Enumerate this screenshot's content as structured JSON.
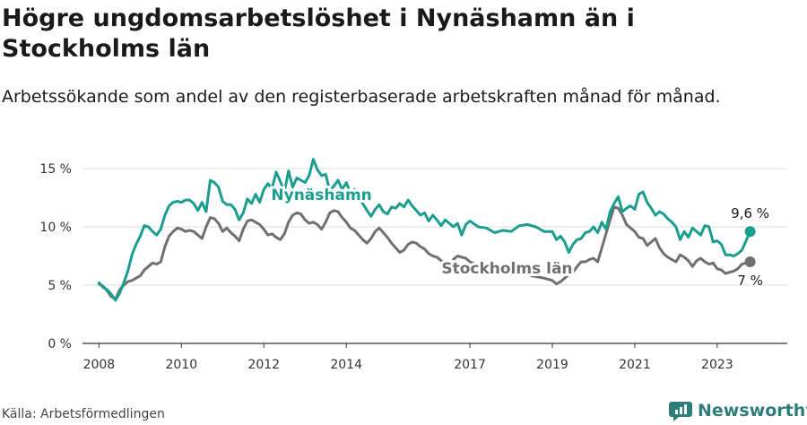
{
  "title": "Högre ungdomsarbetslöshet i Nynäshamn än i Stockholms län",
  "subtitle": "Arbetssökande som andel av den registerbaserade arbetskraften månad för månad.",
  "source": "Källa: Arbetsförmedlingen",
  "brand": {
    "name": "Newsworthy",
    "icon": "newsworthy-logo-icon"
  },
  "colors": {
    "nynashamn": "#1a9e8f",
    "stockholm": "#707070",
    "grid": "#dddddd",
    "axis": "#333333"
  },
  "chart_data": {
    "type": "line",
    "title": "Högre ungdomsarbetslöshet i Nynäshamn än i Stockholms län",
    "xlabel": "",
    "ylabel": "",
    "xlim": [
      2007.6,
      2024.7
    ],
    "ylim": [
      0,
      15
    ],
    "grid": true,
    "yticks": [
      {
        "value": 0,
        "label": "0 %"
      },
      {
        "value": 5,
        "label": "5 %"
      },
      {
        "value": 10,
        "label": "10 %"
      },
      {
        "value": 15,
        "label": "15 %"
      }
    ],
    "xticks": [
      {
        "value": 2008,
        "label": "2008"
      },
      {
        "value": 2010,
        "label": "2010"
      },
      {
        "value": 2012,
        "label": "2012"
      },
      {
        "value": 2014,
        "label": "2014"
      },
      {
        "value": 2017,
        "label": "2017"
      },
      {
        "value": 2019,
        "label": "2019"
      },
      {
        "value": 2021,
        "label": "2021"
      },
      {
        "value": 2023,
        "label": "2023"
      }
    ],
    "series": [
      {
        "name": "Nynäshamn",
        "end_label": "9,6 %",
        "points": [
          [
            2008.0,
            5.2
          ],
          [
            2008.1,
            4.8
          ],
          [
            2008.2,
            4.6
          ],
          [
            2008.3,
            4.2
          ],
          [
            2008.4,
            3.7
          ],
          [
            2008.5,
            4.3
          ],
          [
            2008.6,
            5.2
          ],
          [
            2008.7,
            6.2
          ],
          [
            2008.8,
            7.6
          ],
          [
            2008.9,
            8.5
          ],
          [
            2009.0,
            9.2
          ],
          [
            2009.1,
            10.1
          ],
          [
            2009.2,
            10.0
          ],
          [
            2009.3,
            9.6
          ],
          [
            2009.4,
            9.3
          ],
          [
            2009.5,
            9.8
          ],
          [
            2009.6,
            11.0
          ],
          [
            2009.7,
            11.8
          ],
          [
            2009.8,
            12.1
          ],
          [
            2009.9,
            12.2
          ],
          [
            2010.0,
            12.1
          ],
          [
            2010.1,
            12.3
          ],
          [
            2010.2,
            12.3
          ],
          [
            2010.3,
            12.0
          ],
          [
            2010.4,
            11.4
          ],
          [
            2010.5,
            12.1
          ],
          [
            2010.6,
            11.3
          ],
          [
            2010.7,
            14.0
          ],
          [
            2010.8,
            13.8
          ],
          [
            2010.9,
            13.4
          ],
          [
            2011.0,
            12.2
          ],
          [
            2011.1,
            11.9
          ],
          [
            2011.2,
            11.9
          ],
          [
            2011.3,
            11.5
          ],
          [
            2011.4,
            10.6
          ],
          [
            2011.5,
            11.2
          ],
          [
            2011.6,
            12.4
          ],
          [
            2011.7,
            12.0
          ],
          [
            2011.8,
            12.8
          ],
          [
            2011.9,
            12.1
          ],
          [
            2012.0,
            13.2
          ],
          [
            2012.1,
            13.7
          ],
          [
            2012.2,
            13.3
          ],
          [
            2012.3,
            14.7
          ],
          [
            2012.4,
            13.9
          ],
          [
            2012.5,
            13.0
          ],
          [
            2012.6,
            14.8
          ],
          [
            2012.7,
            13.4
          ],
          [
            2012.8,
            14.2
          ],
          [
            2012.9,
            14.0
          ],
          [
            2013.0,
            13.8
          ],
          [
            2013.1,
            14.4
          ],
          [
            2013.2,
            15.8
          ],
          [
            2013.3,
            14.9
          ],
          [
            2013.4,
            14.4
          ],
          [
            2013.5,
            14.5
          ],
          [
            2013.6,
            13.1
          ],
          [
            2013.7,
            13.5
          ],
          [
            2013.8,
            14.0
          ],
          [
            2013.9,
            13.2
          ],
          [
            2014.0,
            13.8
          ],
          [
            2014.1,
            12.9
          ],
          [
            2014.2,
            13.2
          ],
          [
            2014.3,
            12.4
          ],
          [
            2014.4,
            12.0
          ],
          [
            2014.5,
            11.4
          ],
          [
            2014.6,
            10.9
          ],
          [
            2014.7,
            11.5
          ],
          [
            2014.8,
            11.9
          ],
          [
            2014.9,
            11.3
          ],
          [
            2015.0,
            11.1
          ],
          [
            2015.1,
            11.7
          ],
          [
            2015.2,
            11.6
          ],
          [
            2015.3,
            12.0
          ],
          [
            2015.4,
            11.7
          ],
          [
            2015.5,
            12.3
          ],
          [
            2015.6,
            11.8
          ],
          [
            2015.7,
            11.4
          ],
          [
            2015.8,
            11.0
          ],
          [
            2015.9,
            11.2
          ],
          [
            2016.0,
            10.5
          ],
          [
            2016.1,
            11.0
          ],
          [
            2016.2,
            10.6
          ],
          [
            2016.3,
            10.1
          ],
          [
            2016.4,
            10.6
          ],
          [
            2016.5,
            10.3
          ],
          [
            2016.6,
            10.0
          ],
          [
            2016.7,
            10.3
          ],
          [
            2016.8,
            9.3
          ],
          [
            2016.9,
            10.2
          ],
          [
            2017.0,
            10.5
          ],
          [
            2017.2,
            10.0
          ],
          [
            2017.4,
            9.9
          ],
          [
            2017.6,
            9.5
          ],
          [
            2017.8,
            9.7
          ],
          [
            2018.0,
            9.6
          ],
          [
            2018.2,
            10.1
          ],
          [
            2018.4,
            10.2
          ],
          [
            2018.6,
            10.0
          ],
          [
            2018.8,
            9.6
          ],
          [
            2019.0,
            9.6
          ],
          [
            2019.1,
            8.9
          ],
          [
            2019.2,
            9.2
          ],
          [
            2019.3,
            8.7
          ],
          [
            2019.4,
            7.8
          ],
          [
            2019.5,
            8.5
          ],
          [
            2019.6,
            8.9
          ],
          [
            2019.7,
            9.0
          ],
          [
            2019.8,
            9.5
          ],
          [
            2019.9,
            9.6
          ],
          [
            2020.0,
            10.0
          ],
          [
            2020.1,
            9.5
          ],
          [
            2020.2,
            10.4
          ],
          [
            2020.3,
            9.8
          ],
          [
            2020.4,
            11.3
          ],
          [
            2020.5,
            12.0
          ],
          [
            2020.6,
            12.6
          ],
          [
            2020.7,
            11.3
          ],
          [
            2020.8,
            11.6
          ],
          [
            2020.9,
            11.8
          ],
          [
            2021.0,
            11.5
          ],
          [
            2021.1,
            12.8
          ],
          [
            2021.2,
            13.0
          ],
          [
            2021.3,
            12.1
          ],
          [
            2021.4,
            11.6
          ],
          [
            2021.5,
            11.0
          ],
          [
            2021.6,
            11.3
          ],
          [
            2021.7,
            11.1
          ],
          [
            2021.8,
            10.7
          ],
          [
            2021.9,
            10.4
          ],
          [
            2022.0,
            10.0
          ],
          [
            2022.1,
            8.9
          ],
          [
            2022.2,
            9.6
          ],
          [
            2022.3,
            9.1
          ],
          [
            2022.4,
            9.9
          ],
          [
            2022.5,
            9.6
          ],
          [
            2022.6,
            9.3
          ],
          [
            2022.7,
            10.1
          ],
          [
            2022.8,
            10.0
          ],
          [
            2022.9,
            8.7
          ],
          [
            2023.0,
            8.8
          ],
          [
            2023.1,
            8.5
          ],
          [
            2023.2,
            7.6
          ],
          [
            2023.3,
            7.6
          ],
          [
            2023.4,
            7.5
          ],
          [
            2023.5,
            7.7
          ],
          [
            2023.6,
            8.0
          ],
          [
            2023.7,
            8.8
          ],
          [
            2023.8,
            9.6
          ]
        ]
      },
      {
        "name": "Stockholms län",
        "end_label": "7 %",
        "points": [
          [
            2008.0,
            5.1
          ],
          [
            2008.1,
            4.9
          ],
          [
            2008.2,
            4.5
          ],
          [
            2008.3,
            4.0
          ],
          [
            2008.4,
            3.8
          ],
          [
            2008.5,
            4.6
          ],
          [
            2008.6,
            5.0
          ],
          [
            2008.7,
            5.3
          ],
          [
            2008.8,
            5.4
          ],
          [
            2008.9,
            5.6
          ],
          [
            2009.0,
            5.8
          ],
          [
            2009.1,
            6.3
          ],
          [
            2009.2,
            6.6
          ],
          [
            2009.3,
            6.9
          ],
          [
            2009.4,
            6.8
          ],
          [
            2009.5,
            7.0
          ],
          [
            2009.6,
            8.3
          ],
          [
            2009.7,
            9.2
          ],
          [
            2009.8,
            9.6
          ],
          [
            2009.9,
            9.9
          ],
          [
            2010.0,
            9.8
          ],
          [
            2010.1,
            9.6
          ],
          [
            2010.2,
            9.7
          ],
          [
            2010.3,
            9.6
          ],
          [
            2010.4,
            9.3
          ],
          [
            2010.5,
            9.0
          ],
          [
            2010.6,
            10.0
          ],
          [
            2010.7,
            10.8
          ],
          [
            2010.8,
            10.7
          ],
          [
            2010.9,
            10.3
          ],
          [
            2011.0,
            9.6
          ],
          [
            2011.1,
            9.9
          ],
          [
            2011.2,
            9.5
          ],
          [
            2011.3,
            9.2
          ],
          [
            2011.4,
            8.8
          ],
          [
            2011.5,
            9.8
          ],
          [
            2011.6,
            10.5
          ],
          [
            2011.7,
            10.6
          ],
          [
            2011.8,
            10.4
          ],
          [
            2011.9,
            10.2
          ],
          [
            2012.0,
            9.8
          ],
          [
            2012.1,
            9.3
          ],
          [
            2012.2,
            9.4
          ],
          [
            2012.3,
            9.1
          ],
          [
            2012.4,
            8.9
          ],
          [
            2012.5,
            9.4
          ],
          [
            2012.6,
            10.4
          ],
          [
            2012.7,
            11.0
          ],
          [
            2012.8,
            11.2
          ],
          [
            2012.9,
            11.1
          ],
          [
            2013.0,
            10.6
          ],
          [
            2013.1,
            10.3
          ],
          [
            2013.2,
            10.4
          ],
          [
            2013.3,
            10.2
          ],
          [
            2013.4,
            9.8
          ],
          [
            2013.5,
            10.4
          ],
          [
            2013.6,
            11.2
          ],
          [
            2013.7,
            11.4
          ],
          [
            2013.8,
            11.3
          ],
          [
            2013.9,
            10.8
          ],
          [
            2014.0,
            10.4
          ],
          [
            2014.1,
            9.9
          ],
          [
            2014.2,
            9.7
          ],
          [
            2014.3,
            9.3
          ],
          [
            2014.4,
            8.9
          ],
          [
            2014.5,
            8.6
          ],
          [
            2014.6,
            9.0
          ],
          [
            2014.7,
            9.6
          ],
          [
            2014.8,
            9.9
          ],
          [
            2014.9,
            9.5
          ],
          [
            2015.0,
            9.1
          ],
          [
            2015.1,
            8.6
          ],
          [
            2015.2,
            8.2
          ],
          [
            2015.3,
            7.8
          ],
          [
            2015.4,
            8.0
          ],
          [
            2015.5,
            8.5
          ],
          [
            2015.6,
            8.7
          ],
          [
            2015.7,
            8.6
          ],
          [
            2015.8,
            8.3
          ],
          [
            2015.9,
            8.1
          ],
          [
            2016.0,
            7.7
          ],
          [
            2016.1,
            7.5
          ],
          [
            2016.2,
            7.4
          ],
          [
            2016.3,
            7.1
          ],
          [
            2016.4,
            6.9
          ],
          [
            2016.5,
            6.6
          ],
          [
            2016.6,
            7.2
          ],
          [
            2016.7,
            7.5
          ],
          [
            2016.8,
            7.4
          ],
          [
            2016.9,
            7.3
          ],
          [
            2017.0,
            7.0
          ],
          [
            2017.3,
            6.6
          ],
          [
            2017.6,
            6.3
          ],
          [
            2017.9,
            6.0
          ],
          [
            2018.2,
            6.2
          ],
          [
            2018.5,
            5.8
          ],
          [
            2018.8,
            5.6
          ],
          [
            2019.0,
            5.4
          ],
          [
            2019.1,
            5.1
          ],
          [
            2019.2,
            5.3
          ],
          [
            2019.3,
            5.6
          ],
          [
            2019.4,
            5.9
          ],
          [
            2019.5,
            6.1
          ],
          [
            2019.6,
            6.6
          ],
          [
            2019.7,
            7.0
          ],
          [
            2019.8,
            7.0
          ],
          [
            2019.9,
            7.2
          ],
          [
            2020.0,
            7.3
          ],
          [
            2020.1,
            7.0
          ],
          [
            2020.2,
            8.2
          ],
          [
            2020.3,
            9.4
          ],
          [
            2020.4,
            10.6
          ],
          [
            2020.5,
            11.7
          ],
          [
            2020.6,
            11.6
          ],
          [
            2020.7,
            11.0
          ],
          [
            2020.8,
            10.2
          ],
          [
            2020.9,
            9.9
          ],
          [
            2021.0,
            9.6
          ],
          [
            2021.1,
            9.1
          ],
          [
            2021.2,
            9.0
          ],
          [
            2021.3,
            8.4
          ],
          [
            2021.4,
            8.7
          ],
          [
            2021.5,
            9.0
          ],
          [
            2021.6,
            8.2
          ],
          [
            2021.7,
            7.7
          ],
          [
            2021.8,
            7.4
          ],
          [
            2021.9,
            7.2
          ],
          [
            2022.0,
            7.0
          ],
          [
            2022.1,
            7.6
          ],
          [
            2022.2,
            7.4
          ],
          [
            2022.3,
            7.1
          ],
          [
            2022.4,
            6.6
          ],
          [
            2022.5,
            7.1
          ],
          [
            2022.6,
            7.3
          ],
          [
            2022.7,
            7.0
          ],
          [
            2022.8,
            6.8
          ],
          [
            2022.9,
            6.9
          ],
          [
            2023.0,
            6.4
          ],
          [
            2023.1,
            6.3
          ],
          [
            2023.2,
            6.0
          ],
          [
            2023.3,
            6.1
          ],
          [
            2023.4,
            6.2
          ],
          [
            2023.5,
            6.4
          ],
          [
            2023.6,
            6.8
          ],
          [
            2023.7,
            6.9
          ],
          [
            2023.8,
            7.0
          ]
        ]
      }
    ]
  }
}
